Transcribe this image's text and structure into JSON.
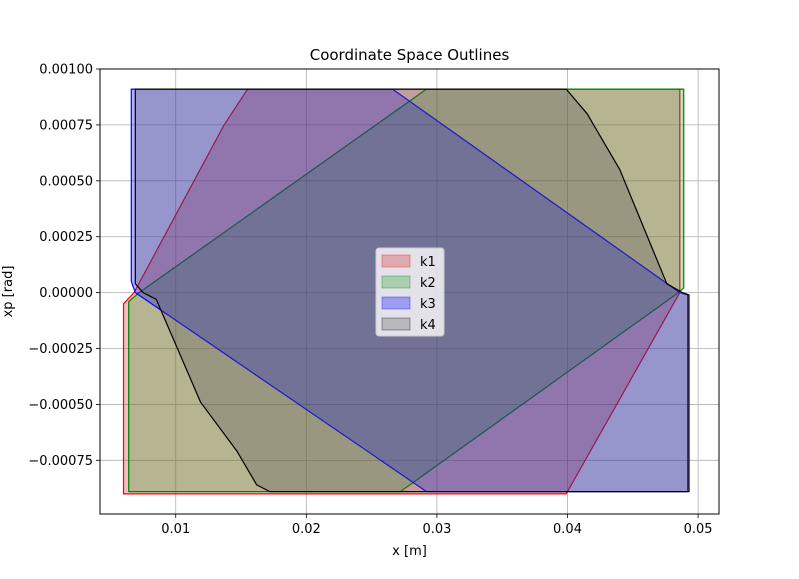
{
  "chart_data": {
    "type": "area",
    "title": "Coordinate Space Outlines",
    "xlabel": "x [m]",
    "ylabel": "xp [rad]",
    "xlim": [
      0.0042,
      0.0516
    ],
    "ylim": [
      -0.00099,
      0.001
    ],
    "xticks": [
      0.01,
      0.02,
      0.03,
      0.04,
      0.05
    ],
    "xtick_labels": [
      "0.01",
      "0.02",
      "0.03",
      "0.04",
      "0.05"
    ],
    "yticks": [
      0.001,
      0.00075,
      0.0005,
      0.00025,
      0.0,
      -0.00025,
      -0.0005,
      -0.00075
    ],
    "ytick_labels": [
      "0.00100",
      "0.00075",
      "0.00050",
      "0.00025",
      "0.00000",
      "−0.00025",
      "−0.00050",
      "−0.00075"
    ],
    "grid": true,
    "legend_position": "center",
    "series": [
      {
        "name": "k1",
        "edge": "#ff0000",
        "fill": "#d62728",
        "fill_opacity": 0.3,
        "x": [
          0.006,
          0.006,
          0.0068,
          0.0137,
          0.0155,
          0.0486,
          0.0486,
          0.0399
        ],
        "y": [
          -0.0009,
          -5e-05,
          0.0,
          0.00075,
          0.00091,
          0.00091,
          0.0,
          -0.0009
        ]
      },
      {
        "name": "k2",
        "edge": "#008000",
        "fill": "#2ca02c",
        "fill_opacity": 0.3,
        "x": [
          0.0064,
          0.0064,
          0.0072,
          0.0292,
          0.0489,
          0.0489,
          0.0485,
          0.0272
        ],
        "y": [
          -0.00089,
          -4e-05,
          0.0,
          0.00091,
          0.00091,
          2e-05,
          0.0,
          -0.00089
        ]
      },
      {
        "name": "k3",
        "edge": "#0000ff",
        "fill": "#0000ff",
        "fill_opacity": 0.3,
        "x": [
          0.0066,
          0.0066,
          0.0069,
          0.0292,
          0.0492,
          0.0492,
          0.0486,
          0.0266
        ],
        "y": [
          0.00091,
          5e-05,
          0.0,
          -0.00089,
          -0.00089,
          -1e-05,
          0.0,
          0.00091
        ]
      },
      {
        "name": "k4",
        "edge": "#000000",
        "fill": "#555555",
        "fill_opacity": 0.3,
        "x": [
          0.0069,
          0.0069,
          0.0075,
          0.0085,
          0.0119,
          0.0147,
          0.0162,
          0.0172,
          0.0493,
          0.0493,
          0.0488,
          0.0476,
          0.044,
          0.0415,
          0.0399
        ],
        "y": [
          0.00091,
          4e-05,
          0.0,
          -3e-05,
          -0.00049,
          -0.00071,
          -0.00086,
          -0.00089,
          -0.00089,
          -1e-05,
          0.0,
          4e-05,
          0.00055,
          0.0008,
          0.00091
        ]
      }
    ]
  }
}
